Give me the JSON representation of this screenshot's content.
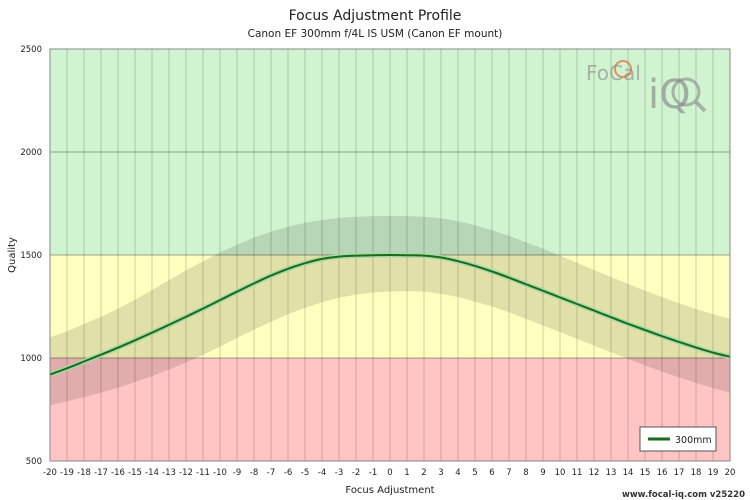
{
  "chart_data": {
    "type": "line",
    "title": "Focus Adjustment Profile",
    "subtitle": "Canon EF 300mm f/4L IS USM (Canon EF mount)",
    "xlabel": "Focus Adjustment",
    "ylabel": "Quality",
    "xlim": [
      -20,
      20
    ],
    "ylim": [
      500,
      2500
    ],
    "x_ticks": [
      -20,
      -19,
      -18,
      -17,
      -16,
      -15,
      -14,
      -13,
      -12,
      -11,
      -10,
      -9,
      -8,
      -7,
      -6,
      -5,
      -4,
      -3,
      -2,
      -1,
      0,
      1,
      2,
      3,
      4,
      5,
      6,
      7,
      8,
      9,
      10,
      11,
      12,
      13,
      14,
      15,
      16,
      17,
      18,
      19,
      20
    ],
    "y_ticks": [
      500,
      1000,
      1500,
      2000,
      2500
    ],
    "bands": [
      {
        "from": 500,
        "to": 1000,
        "color": "#ffc4c4"
      },
      {
        "from": 1000,
        "to": 1500,
        "color": "#ffffc0"
      },
      {
        "from": 1500,
        "to": 2500,
        "color": "#d0f4d0"
      }
    ],
    "series": [
      {
        "name": "300mm",
        "color": "#1a6b1a",
        "x": [
          -20,
          -19,
          -18,
          -17,
          -16,
          -15,
          -14,
          -13,
          -12,
          -11,
          -10,
          -9,
          -8,
          -7,
          -6,
          -5,
          -4,
          -3,
          -2,
          -1,
          0,
          1,
          2,
          3,
          4,
          5,
          6,
          7,
          8,
          9,
          10,
          11,
          12,
          13,
          14,
          15,
          16,
          17,
          18,
          19,
          20
        ],
        "y": [
          920,
          950,
          983,
          1016,
          1050,
          1086,
          1123,
          1161,
          1200,
          1240,
          1281,
          1322,
          1362,
          1400,
          1433,
          1460,
          1481,
          1492,
          1497,
          1499,
          1500,
          1499,
          1497,
          1488,
          1470,
          1447,
          1420,
          1390,
          1358,
          1326,
          1294,
          1262,
          1230,
          1198,
          1166,
          1136,
          1106,
          1078,
          1051,
          1026,
          1006
        ],
        "band_upper": [
          1100,
          1130,
          1165,
          1200,
          1240,
          1283,
          1330,
          1378,
          1425,
          1470,
          1512,
          1550,
          1585,
          1613,
          1638,
          1656,
          1670,
          1680,
          1686,
          1689,
          1690,
          1689,
          1686,
          1678,
          1664,
          1644,
          1620,
          1593,
          1562,
          1530,
          1497,
          1462,
          1427,
          1393,
          1360,
          1327,
          1296,
          1266,
          1238,
          1213,
          1190
        ],
        "band_lower": [
          770,
          790,
          810,
          832,
          856,
          883,
          912,
          944,
          978,
          1015,
          1055,
          1097,
          1138,
          1176,
          1212,
          1244,
          1271,
          1292,
          1308,
          1318,
          1323,
          1325,
          1323,
          1312,
          1296,
          1274,
          1250,
          1222,
          1190,
          1158,
          1126,
          1093,
          1060,
          1028,
          996,
          964,
          934,
          906,
          879,
          854,
          832
        ]
      }
    ],
    "legend": {
      "position": "bottom-right",
      "entries": [
        "300mm"
      ]
    },
    "grid": true
  },
  "footer": "www.focal-iq.com  v25220",
  "logo": {
    "line1": "FoCal",
    "line2": "iQ"
  }
}
